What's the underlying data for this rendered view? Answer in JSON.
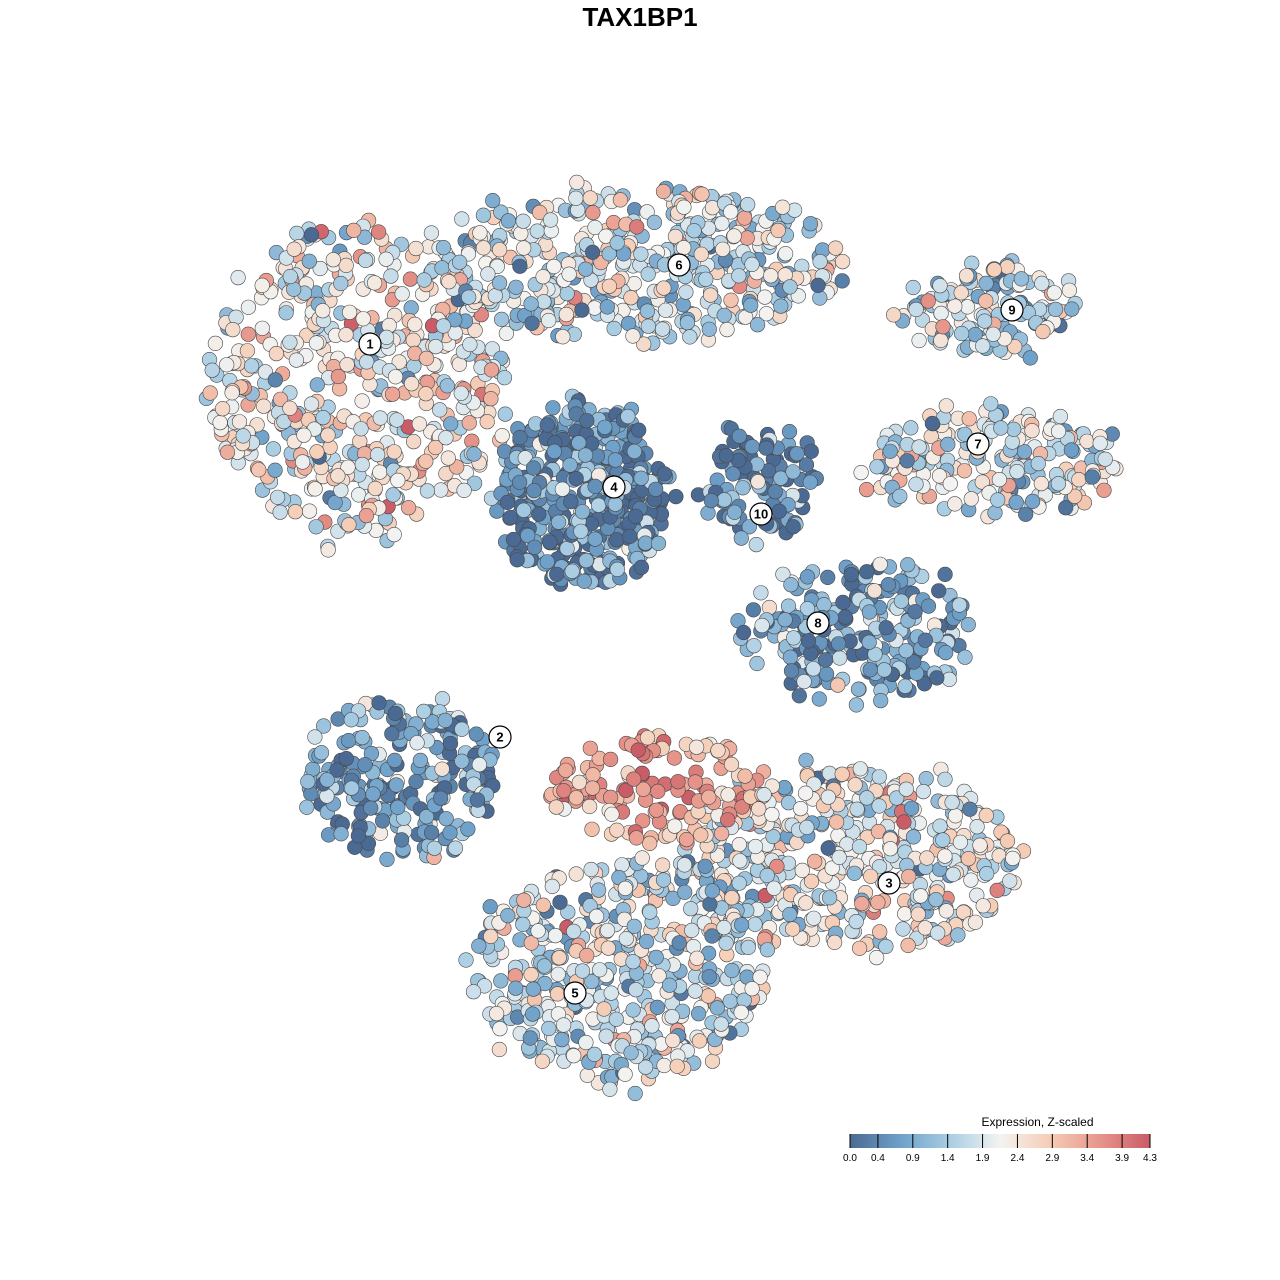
{
  "chart_data": {
    "type": "scatter",
    "title": "TAX1BP1",
    "color_scale": {
      "title": "Expression, Z-scaled",
      "min": 0.0,
      "max": 4.3,
      "ticks": [
        "0.0",
        "0.4",
        "0.9",
        "1.4",
        "1.9",
        "2.4",
        "2.9",
        "3.4",
        "3.9",
        "4.3"
      ],
      "colors": [
        "#4a6a93",
        "#6ea0c9",
        "#a9cde3",
        "#f3f3f1",
        "#f5cdb6",
        "#e7958a",
        "#c95c66"
      ]
    },
    "clusters": [
      {
        "id": "1",
        "label": "1",
        "mean_expression": 2.2
      },
      {
        "id": "2",
        "label": "2",
        "mean_expression": 0.7
      },
      {
        "id": "3",
        "label": "3",
        "mean_expression": 2.0
      },
      {
        "id": "4",
        "label": "4",
        "mean_expression": 0.5
      },
      {
        "id": "5",
        "label": "5",
        "mean_expression": 1.8
      },
      {
        "id": "6",
        "label": "6",
        "mean_expression": 1.8
      },
      {
        "id": "7",
        "label": "7",
        "mean_expression": 2.0
      },
      {
        "id": "8",
        "label": "8",
        "mean_expression": 0.8
      },
      {
        "id": "9",
        "label": "9",
        "mean_expression": 1.6
      },
      {
        "id": "10",
        "label": "10",
        "mean_expression": 0.3
      }
    ],
    "grid": false,
    "legend_position": "bottom-right"
  }
}
